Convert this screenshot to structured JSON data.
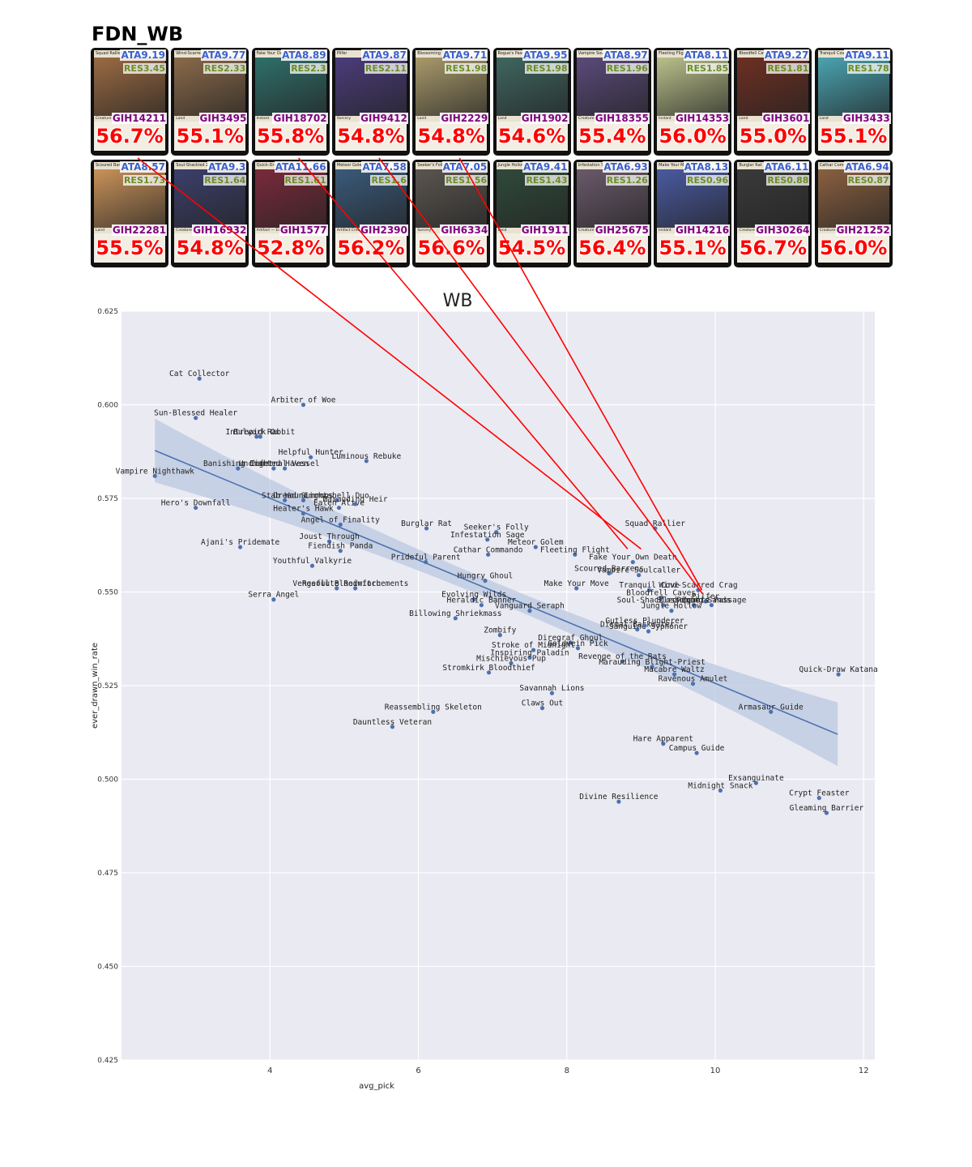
{
  "page_title": "FDN_WB",
  "cards": [
    {
      "name": "Squad Rallier",
      "type": "Creature — Human Scout",
      "ata": "ATA9.19",
      "res": "RES3.45",
      "gih": "GIH14211",
      "wr": "56.7%",
      "art": "#9b6b43"
    },
    {
      "name": "Wind-Scarred Crag",
      "type": "Land",
      "ata": "ATA9.77",
      "res": "RES2.33",
      "gih": "GIH3495",
      "wr": "55.1%",
      "art": "#8a6a4a"
    },
    {
      "name": "Fake Your Own Death",
      "type": "Instant",
      "ata": "ATA8.89",
      "res": "RES2.3",
      "gih": "GIH18702",
      "wr": "55.8%",
      "art": "#2f6f6a"
    },
    {
      "name": "Pilfer",
      "type": "Sorcery",
      "ata": "ATA9.87",
      "res": "RES2.11",
      "gih": "GIH9412",
      "wr": "54.8%",
      "art": "#4b3c7a"
    },
    {
      "name": "Blossoming Sands",
      "type": "Land",
      "ata": "ATA9.71",
      "res": "RES1.98",
      "gih": "GIH2229",
      "wr": "54.8%",
      "art": "#a99a6b"
    },
    {
      "name": "Rogue's Passage",
      "type": "Land",
      "ata": "ATA9.95",
      "res": "RES1.98",
      "gih": "GIH1902",
      "wr": "54.6%",
      "art": "#3f6660"
    },
    {
      "name": "Vampire Soulcaller",
      "type": "Creature — Vampire Warlock",
      "ata": "ATA8.97",
      "res": "RES1.96",
      "gih": "GIH18355",
      "wr": "55.4%",
      "art": "#5a4a7a"
    },
    {
      "name": "Fleeting Flight",
      "type": "Instant",
      "ata": "ATA8.11",
      "res": "RES1.85",
      "gih": "GIH14353",
      "wr": "56.0%",
      "art": "#b9c08a"
    },
    {
      "name": "Bloodfell Caves",
      "type": "Land",
      "ata": "ATA9.27",
      "res": "RES1.81",
      "gih": "GIH3601",
      "wr": "55.0%",
      "art": "#6e2f22"
    },
    {
      "name": "Tranquil Cove",
      "type": "Land",
      "ata": "ATA9.11",
      "res": "RES1.78",
      "gih": "GIH3433",
      "wr": "55.1%",
      "art": "#4aa3b0"
    },
    {
      "name": "Scoured Barrens",
      "type": "Land",
      "ata": "ATA8.57",
      "res": "RES1.73",
      "gih": "GIH22281",
      "wr": "55.5%",
      "art": "#c9925a"
    },
    {
      "name": "Soul-Shackled Zombie",
      "type": "Creature — Zombie",
      "ata": "ATA9.3",
      "res": "RES1.64",
      "gih": "GIH16932",
      "wr": "54.8%",
      "art": "#3c3f6a"
    },
    {
      "name": "Quick-Draw Katana",
      "type": "Artifact — Equipment",
      "ata": "ATA11.66",
      "res": "RES1.61",
      "gih": "GIH1577",
      "wr": "52.8%",
      "art": "#7a2a3a"
    },
    {
      "name": "Meteor Golem",
      "type": "Artifact Creature — Golem",
      "ata": "ATA7.58",
      "res": "RES1.6",
      "gih": "GIH2390",
      "wr": "56.2%",
      "art": "#3a5a7a"
    },
    {
      "name": "Seeker's Folly",
      "type": "Sorcery",
      "ata": "ATA7.05",
      "res": "RES1.56",
      "gih": "GIH6334",
      "wr": "56.6%",
      "art": "#5a5550"
    },
    {
      "name": "Jungle Hollow",
      "type": "Land",
      "ata": "ATA9.41",
      "res": "RES1.43",
      "gih": "GIH1911",
      "wr": "54.5%",
      "art": "#2f4a3a"
    },
    {
      "name": "Infestation Sage",
      "type": "Creature — Elf Warlock",
      "ata": "ATA6.93",
      "res": "RES1.26",
      "gih": "GIH25675",
      "wr": "56.4%",
      "art": "#6a5a6a"
    },
    {
      "name": "Make Your Move",
      "type": "Instant",
      "ata": "ATA8.13",
      "res": "RES0.96",
      "gih": "GIH14216",
      "wr": "55.1%",
      "art": "#4a5aa0"
    },
    {
      "name": "Burglar Rat",
      "type": "Creature — Rat",
      "ata": "ATA6.11",
      "res": "RES0.88",
      "gih": "GIH30264",
      "wr": "56.7%",
      "art": "#3a3a3a"
    },
    {
      "name": "Cathar Commando",
      "type": "Creature — Human Soldier",
      "ata": "ATA6.94",
      "res": "RES0.87",
      "gih": "GIH21252",
      "wr": "56.0%",
      "art": "#8a6040"
    }
  ],
  "chart_data": {
    "type": "scatter",
    "title": "WB",
    "xlabel": "avg_pick",
    "ylabel": "ever_drawn_win_rate",
    "xlim": [
      2.0,
      12.15
    ],
    "ylim": [
      0.425,
      0.625
    ],
    "xticks": [
      "4",
      "6",
      "8",
      "10",
      "12"
    ],
    "yticks": [
      "0.425",
      "0.450",
      "0.475",
      "0.500",
      "0.525",
      "0.550",
      "0.575",
      "0.600",
      "0.625"
    ],
    "grid": true,
    "regression": {
      "x": [
        2.45,
        11.65
      ],
      "y": [
        0.5878,
        0.512
      ],
      "band_halfwidth_ends": 0.0085,
      "band_halfwidth_mid": 0.0025
    },
    "points": [
      {
        "label": "Cat Collector",
        "x": 3.05,
        "y": 0.607
      },
      {
        "label": "Arbiter of Woe",
        "x": 4.45,
        "y": 0.6
      },
      {
        "label": "Sun-Blessed Healer",
        "x": 3.0,
        "y": 0.5965
      },
      {
        "label": "Bulwark Ox",
        "x": 3.82,
        "y": 0.5915
      },
      {
        "label": "Intrepid Rabbit",
        "x": 3.87,
        "y": 0.5915
      },
      {
        "label": "Helpful Hunter",
        "x": 4.55,
        "y": 0.586
      },
      {
        "label": "Luminous Rebuke",
        "x": 5.3,
        "y": 0.585
      },
      {
        "label": "Banishing Light",
        "x": 3.57,
        "y": 0.583
      },
      {
        "label": "Infernal Vessel",
        "x": 4.2,
        "y": 0.583
      },
      {
        "label": "Uncharted Haven",
        "x": 4.05,
        "y": 0.583
      },
      {
        "label": "Vampire Nighthawk",
        "x": 2.45,
        "y": 0.581
      },
      {
        "label": "Stab Wound",
        "x": 4.2,
        "y": 0.5745
      },
      {
        "label": "Dread Summons",
        "x": 4.45,
        "y": 0.5745
      },
      {
        "label": "Lightshell Duo",
        "x": 4.9,
        "y": 0.5745
      },
      {
        "label": "Eaten Alive",
        "x": 4.93,
        "y": 0.5725
      },
      {
        "label": "Marauding Heir",
        "x": 5.15,
        "y": 0.5735
      },
      {
        "label": "Hero's Downfall",
        "x": 3.0,
        "y": 0.5725
      },
      {
        "label": "Healer's Hawk",
        "x": 4.45,
        "y": 0.571
      },
      {
        "label": "Angel of Finality",
        "x": 4.95,
        "y": 0.568
      },
      {
        "label": "Burglar Rat",
        "x": 6.11,
        "y": 0.567
      },
      {
        "label": "Seeker's Folly",
        "x": 7.05,
        "y": 0.566
      },
      {
        "label": "Infestation Sage",
        "x": 6.93,
        "y": 0.564
      },
      {
        "label": "Squad Rallier",
        "x": 9.19,
        "y": 0.567
      },
      {
        "label": "Joust Through",
        "x": 4.8,
        "y": 0.5635
      },
      {
        "label": "Meteor Golem",
        "x": 7.58,
        "y": 0.562
      },
      {
        "label": "Ajani's Pridemate",
        "x": 3.6,
        "y": 0.562
      },
      {
        "label": "Fiendish Panda",
        "x": 4.95,
        "y": 0.561
      },
      {
        "label": "Cathar Commando",
        "x": 6.94,
        "y": 0.56
      },
      {
        "label": "Fleeting Flight",
        "x": 8.11,
        "y": 0.56
      },
      {
        "label": "Prideful Parent",
        "x": 6.1,
        "y": 0.558
      },
      {
        "label": "Fake Your Own Death",
        "x": 8.89,
        "y": 0.558
      },
      {
        "label": "Youthful Valkyrie",
        "x": 4.57,
        "y": 0.557
      },
      {
        "label": "Scoured Barrens",
        "x": 8.57,
        "y": 0.555
      },
      {
        "label": "Vampire Soulcaller",
        "x": 8.97,
        "y": 0.5545
      },
      {
        "label": "Hungry Ghoul",
        "x": 6.9,
        "y": 0.553
      },
      {
        "label": "Make Your Move",
        "x": 8.13,
        "y": 0.551
      },
      {
        "label": "Tranquil Cove",
        "x": 9.11,
        "y": 0.5505
      },
      {
        "label": "Wind-Scarred Crag",
        "x": 9.77,
        "y": 0.5505
      },
      {
        "label": "Vengeful Bloodwitch",
        "x": 4.9,
        "y": 0.551
      },
      {
        "label": "Resolute Reinforcements",
        "x": 5.15,
        "y": 0.551
      },
      {
        "label": "Bloodfell Caves",
        "x": 9.27,
        "y": 0.5485
      },
      {
        "label": "Soul-Shackled Zombie",
        "x": 9.3,
        "y": 0.5465
      },
      {
        "label": "Blossoming Sands",
        "x": 9.71,
        "y": 0.5465
      },
      {
        "label": "Pilfer",
        "x": 9.87,
        "y": 0.5475
      },
      {
        "label": "Rogue's Passage",
        "x": 9.95,
        "y": 0.5465
      },
      {
        "label": "Serra Angel",
        "x": 4.05,
        "y": 0.548
      },
      {
        "label": "Evolving Wilds",
        "x": 6.75,
        "y": 0.548
      },
      {
        "label": "Heraldic Banner",
        "x": 6.85,
        "y": 0.5465
      },
      {
        "label": "Vanguard Seraph",
        "x": 7.5,
        "y": 0.545
      },
      {
        "label": "Jungle Hollow",
        "x": 9.41,
        "y": 0.545
      },
      {
        "label": "Billowing Shriekmass",
        "x": 6.5,
        "y": 0.543
      },
      {
        "label": "Dismal Backwater",
        "x": 8.95,
        "y": 0.54
      },
      {
        "label": "Sanguine Syphoner",
        "x": 9.1,
        "y": 0.5395
      },
      {
        "label": "Gutless Plunderer",
        "x": 9.05,
        "y": 0.541
      },
      {
        "label": "Zombify",
        "x": 7.1,
        "y": 0.5385
      },
      {
        "label": "Diregraf Ghoul",
        "x": 8.05,
        "y": 0.5365
      },
      {
        "label": "Stroke of Midnight",
        "x": 7.55,
        "y": 0.5345
      },
      {
        "label": "Goldvein Pick",
        "x": 8.15,
        "y": 0.535
      },
      {
        "label": "Inspiring Paladin",
        "x": 7.5,
        "y": 0.5325
      },
      {
        "label": "Mischievous Pup",
        "x": 7.25,
        "y": 0.531
      },
      {
        "label": "Revenge of the Rats",
        "x": 8.75,
        "y": 0.5315
      },
      {
        "label": "Marauding Blight-Priest",
        "x": 9.15,
        "y": 0.53
      },
      {
        "label": "Stromkirk Bloodthief",
        "x": 6.95,
        "y": 0.5285
      },
      {
        "label": "Macabre Waltz",
        "x": 9.45,
        "y": 0.528
      },
      {
        "label": "Quick-Draw Katana",
        "x": 11.66,
        "y": 0.528
      },
      {
        "label": "Ravenous Amulet",
        "x": 9.7,
        "y": 0.5255
      },
      {
        "label": "Savannah Lions",
        "x": 7.8,
        "y": 0.523
      },
      {
        "label": "Claws Out",
        "x": 7.67,
        "y": 0.519
      },
      {
        "label": "Reassembling Skeleton",
        "x": 6.2,
        "y": 0.518
      },
      {
        "label": "Armasaur Guide",
        "x": 10.75,
        "y": 0.518
      },
      {
        "label": "Dauntless Veteran",
        "x": 5.65,
        "y": 0.514
      },
      {
        "label": "Hare Apparent",
        "x": 9.3,
        "y": 0.5095
      },
      {
        "label": "Campus Guide",
        "x": 9.75,
        "y": 0.507
      },
      {
        "label": "Exsanguinate",
        "x": 10.55,
        "y": 0.499
      },
      {
        "label": "Midnight Snack",
        "x": 10.07,
        "y": 0.497
      },
      {
        "label": "Crypt Feaster",
        "x": 11.4,
        "y": 0.495
      },
      {
        "label": "Divine Resilience",
        "x": 8.7,
        "y": 0.494
      },
      {
        "label": "Gleaming Barrier",
        "x": 11.5,
        "y": 0.491
      }
    ],
    "connectors": [
      {
        "card_index": 10,
        "x": 9.0,
        "y": 0.5615
      },
      {
        "card_index": 12,
        "x": 8.82,
        "y": 0.5615
      },
      {
        "card_index": 13,
        "x": 9.83,
        "y": 0.5495
      },
      {
        "card_index": 14,
        "x": 9.82,
        "y": 0.5505
      }
    ],
    "colors": {
      "point": "#4c72b0",
      "line": "#4c72b0",
      "band": "#b8c6e0",
      "plot_bg": "#eaeaf2",
      "connector": "#ff0000"
    }
  }
}
